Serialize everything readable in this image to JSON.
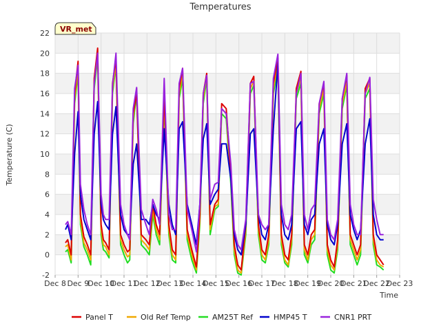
{
  "chart_data": {
    "type": "line",
    "title": "Temperatures",
    "xlabel": "Time",
    "ylabel": "Temperature (C)",
    "badge": "VR_met",
    "ylim": [
      -2,
      22
    ],
    "yticks": [
      -2,
      0,
      2,
      4,
      6,
      8,
      10,
      12,
      14,
      16,
      18,
      20,
      22
    ],
    "xlim": [
      8,
      23
    ],
    "xticks": [
      {
        "value": 8,
        "label": "Dec 8"
      },
      {
        "value": 9,
        "label": "Dec 9"
      },
      {
        "value": 10,
        "label": "Dec 10"
      },
      {
        "value": 11,
        "label": "Dec 11"
      },
      {
        "value": 12,
        "label": "Dec 12"
      },
      {
        "value": 13,
        "label": "Dec 13"
      },
      {
        "value": 14,
        "label": "Dec 14"
      },
      {
        "value": 15,
        "label": "Dec 15"
      },
      {
        "value": 16,
        "label": "Dec 16"
      },
      {
        "value": 17,
        "label": "Dec 17"
      },
      {
        "value": 18,
        "label": "Dec 18"
      },
      {
        "value": 19,
        "label": "Dec 19"
      },
      {
        "value": 20,
        "label": "Dec 20"
      },
      {
        "value": 21,
        "label": "Dec 21"
      },
      {
        "value": 22,
        "label": "Dec 22"
      },
      {
        "value": 23,
        "label": "Dec 23"
      }
    ],
    "grid": true,
    "legend_position": "bottom",
    "series": [
      {
        "name": "Panel T",
        "color": "#dd0000",
        "x": [
          8.45,
          8.55,
          8.7,
          8.85,
          9.0,
          9.1,
          9.25,
          9.4,
          9.55,
          9.7,
          9.85,
          10.0,
          10.1,
          10.2,
          10.35,
          10.5,
          10.65,
          10.85,
          11.0,
          11.15,
          11.25,
          11.4,
          11.55,
          11.75,
          11.95,
          12.1,
          12.25,
          12.4,
          12.55,
          12.75,
          12.95,
          13.1,
          13.25,
          13.4,
          13.55,
          13.75,
          13.95,
          14.15,
          14.3,
          14.45,
          14.6,
          14.75,
          14.95,
          15.1,
          15.25,
          15.45,
          15.65,
          15.8,
          15.95,
          16.1,
          16.3,
          16.5,
          16.65,
          16.85,
          17.0,
          17.15,
          17.3,
          17.5,
          17.7,
          17.85,
          18.0,
          18.15,
          18.3,
          18.5,
          18.7,
          18.85,
          19.0,
          19.15,
          19.3,
          19.5,
          19.7,
          19.85,
          20.0,
          20.15,
          20.3,
          20.5,
          20.7,
          20.85,
          21.0,
          21.15,
          21.3,
          21.5,
          21.7,
          21.85,
          22.0,
          22.15,
          22.3
        ],
        "y": [
          1.2,
          1.5,
          0.0,
          16.0,
          19.2,
          4.0,
          1.8,
          1.0,
          0.0,
          17.5,
          20.5,
          3.0,
          1.5,
          1.2,
          0.5,
          17.0,
          19.5,
          2.0,
          1.0,
          0.3,
          0.5,
          14.0,
          16.0,
          2.0,
          1.5,
          1.0,
          5.0,
          3.0,
          2.0,
          16.0,
          3.0,
          0.5,
          0.0,
          16.5,
          18.5,
          2.5,
          0.5,
          -1.2,
          4.0,
          16.0,
          18.0,
          3.0,
          5.0,
          5.5,
          15.0,
          14.5,
          8.0,
          1.0,
          -1.0,
          -1.5,
          3.0,
          17.0,
          17.7,
          3.0,
          0.5,
          0.0,
          2.0,
          17.0,
          19.5,
          2.0,
          0.0,
          -0.5,
          2.0,
          16.5,
          18.2,
          1.0,
          0.0,
          2.0,
          2.5,
          15.0,
          17.0,
          1.0,
          -0.5,
          -1.2,
          1.5,
          15.5,
          17.8,
          2.0,
          1.0,
          0.0,
          1.0,
          16.5,
          17.5,
          2.0,
          0.0,
          -0.5,
          -1.0
        ]
      },
      {
        "name": "Old Ref Temp",
        "color": "#f0a800",
        "x": [
          8.45,
          8.55,
          8.7,
          8.85,
          9.0,
          9.1,
          9.25,
          9.4,
          9.55,
          9.7,
          9.85,
          10.0,
          10.1,
          10.2,
          10.35,
          10.5,
          10.65,
          10.85,
          11.0,
          11.15,
          11.25,
          11.4,
          11.55,
          11.75,
          11.95,
          12.1,
          12.25,
          12.4,
          12.55,
          12.75,
          12.95,
          13.1,
          13.25,
          13.4,
          13.55,
          13.75,
          13.95,
          14.15,
          14.3,
          14.45,
          14.6,
          14.75,
          14.95,
          15.1,
          15.25,
          15.45,
          15.65,
          15.8,
          15.95,
          16.1,
          16.3,
          16.5,
          16.65,
          16.85,
          17.0,
          17.15,
          17.3,
          17.5,
          17.7,
          17.85,
          18.0,
          18.15,
          18.3,
          18.5,
          18.7,
          18.85,
          19.0,
          19.15,
          19.3,
          19.5,
          19.7,
          19.85,
          20.0,
          20.15,
          20.3,
          20.5,
          20.7,
          20.85,
          21.0,
          21.15,
          21.3,
          21.5,
          21.7,
          21.85,
          22.0,
          22.15,
          22.3
        ],
        "y": [
          0.8,
          1.0,
          -0.5,
          15.5,
          18.5,
          3.5,
          1.2,
          0.5,
          -0.5,
          17.0,
          19.8,
          2.5,
          1.0,
          0.8,
          0.0,
          16.5,
          19.0,
          1.5,
          0.5,
          -0.2,
          0.0,
          13.5,
          16.5,
          1.5,
          1.0,
          0.5,
          4.5,
          2.5,
          1.5,
          15.5,
          2.5,
          0.0,
          -0.5,
          16.0,
          18.0,
          2.0,
          0.0,
          -1.5,
          3.5,
          15.5,
          17.9,
          2.5,
          4.8,
          5.0,
          14.5,
          14.0,
          7.5,
          0.5,
          -1.5,
          -1.8,
          2.5,
          16.5,
          17.2,
          2.5,
          0.0,
          -0.5,
          1.5,
          16.5,
          19.0,
          1.5,
          -0.5,
          -1.0,
          1.5,
          16.0,
          17.5,
          0.5,
          -0.5,
          1.5,
          2.0,
          14.5,
          16.5,
          0.5,
          -1.0,
          -1.5,
          1.0,
          15.0,
          17.2,
          1.5,
          0.5,
          -0.5,
          0.5,
          16.0,
          17.0,
          1.5,
          -0.5,
          -1.0,
          -1.2
        ]
      },
      {
        "name": "AM25T Ref",
        "color": "#22dd22",
        "x": [
          8.45,
          8.55,
          8.7,
          8.85,
          9.0,
          9.1,
          9.25,
          9.4,
          9.55,
          9.7,
          9.85,
          10.0,
          10.1,
          10.2,
          10.35,
          10.5,
          10.65,
          10.85,
          11.0,
          11.15,
          11.25,
          11.4,
          11.55,
          11.75,
          11.95,
          12.1,
          12.25,
          12.4,
          12.55,
          12.75,
          12.95,
          13.1,
          13.25,
          13.4,
          13.55,
          13.75,
          13.95,
          14.15,
          14.3,
          14.45,
          14.6,
          14.75,
          14.95,
          15.1,
          15.25,
          15.45,
          15.65,
          15.8,
          15.95,
          16.1,
          16.3,
          16.5,
          16.65,
          16.85,
          17.0,
          17.15,
          17.3,
          17.5,
          17.7,
          17.85,
          18.0,
          18.15,
          18.3,
          18.5,
          18.7,
          18.85,
          19.0,
          19.15,
          19.3,
          19.5,
          19.7,
          19.85,
          20.0,
          20.15,
          20.3,
          20.5,
          20.7,
          20.85,
          21.0,
          21.15,
          21.3,
          21.5,
          21.7,
          21.85,
          22.0,
          22.15,
          22.3
        ],
        "y": [
          0.3,
          0.5,
          -0.8,
          15.0,
          18.0,
          3.0,
          0.8,
          0.0,
          -1.0,
          16.5,
          19.5,
          2.0,
          0.5,
          0.3,
          -0.3,
          16.0,
          18.8,
          1.0,
          0.0,
          -0.8,
          -0.5,
          13.0,
          16.0,
          1.0,
          0.5,
          0.0,
          4.0,
          2.0,
          1.0,
          15.0,
          2.0,
          -0.5,
          -0.8,
          15.5,
          17.5,
          1.5,
          -0.5,
          -1.8,
          3.0,
          15.0,
          17.5,
          2.0,
          4.5,
          4.8,
          14.0,
          13.5,
          7.0,
          0.0,
          -1.8,
          -2.0,
          2.0,
          16.0,
          16.8,
          2.0,
          -0.5,
          -0.8,
          1.0,
          16.0,
          18.5,
          1.0,
          -0.8,
          -1.2,
          1.0,
          15.5,
          17.0,
          0.0,
          -0.8,
          1.0,
          1.5,
          14.0,
          16.0,
          0.0,
          -1.5,
          -1.8,
          0.5,
          14.5,
          16.8,
          1.0,
          0.0,
          -1.0,
          0.0,
          15.5,
          16.5,
          1.0,
          -1.0,
          -1.2,
          -1.5
        ]
      },
      {
        "name": "HMP45 T",
        "color": "#0000cc",
        "x": [
          8.45,
          8.55,
          8.7,
          8.85,
          9.0,
          9.1,
          9.25,
          9.4,
          9.55,
          9.7,
          9.85,
          10.0,
          10.1,
          10.2,
          10.35,
          10.5,
          10.65,
          10.85,
          11.0,
          11.15,
          11.25,
          11.4,
          11.55,
          11.75,
          11.95,
          12.1,
          12.25,
          12.4,
          12.55,
          12.75,
          12.95,
          13.1,
          13.25,
          13.4,
          13.55,
          13.75,
          13.95,
          14.15,
          14.3,
          14.45,
          14.6,
          14.75,
          14.95,
          15.1,
          15.25,
          15.45,
          15.65,
          15.8,
          15.95,
          16.1,
          16.3,
          16.5,
          16.65,
          16.85,
          17.0,
          17.15,
          17.3,
          17.5,
          17.7,
          17.85,
          18.0,
          18.15,
          18.3,
          18.5,
          18.7,
          18.85,
          19.0,
          19.15,
          19.3,
          19.5,
          19.7,
          19.85,
          20.0,
          20.15,
          20.3,
          20.5,
          20.7,
          20.85,
          21.0,
          21.15,
          21.3,
          21.5,
          21.7,
          21.85,
          22.0,
          22.15,
          22.3
        ],
        "y": [
          2.5,
          3.0,
          1.5,
          10.0,
          14.2,
          6.0,
          3.5,
          2.5,
          1.5,
          12.0,
          15.2,
          5.0,
          3.5,
          3.0,
          2.5,
          12.0,
          14.7,
          4.0,
          2.5,
          2.0,
          2.0,
          9.0,
          11.0,
          3.5,
          3.5,
          3.0,
          5.0,
          4.0,
          3.5,
          12.5,
          5.0,
          3.0,
          2.0,
          12.5,
          13.2,
          5.0,
          3.0,
          1.0,
          5.0,
          11.5,
          13.0,
          5.0,
          6.0,
          6.5,
          11.0,
          11.0,
          7.5,
          2.0,
          0.5,
          0.0,
          3.0,
          12.0,
          12.5,
          4.0,
          2.0,
          1.5,
          3.0,
          12.5,
          19.0,
          4.0,
          2.0,
          1.5,
          3.0,
          12.5,
          13.2,
          3.0,
          2.0,
          3.5,
          4.0,
          11.0,
          12.5,
          3.0,
          1.5,
          1.0,
          3.0,
          11.0,
          13.0,
          4.0,
          2.5,
          1.5,
          2.5,
          11.0,
          13.5,
          4.0,
          2.0,
          1.5,
          1.5
        ]
      },
      {
        "name": "CNR1 PRT",
        "color": "#9922dd",
        "x": [
          8.45,
          8.55,
          8.7,
          8.85,
          9.0,
          9.1,
          9.25,
          9.4,
          9.55,
          9.7,
          9.85,
          10.0,
          10.1,
          10.2,
          10.35,
          10.5,
          10.65,
          10.85,
          11.0,
          11.15,
          11.25,
          11.4,
          11.55,
          11.75,
          11.95,
          12.1,
          12.25,
          12.4,
          12.55,
          12.75,
          12.95,
          13.1,
          13.25,
          13.4,
          13.55,
          13.75,
          13.95,
          14.15,
          14.3,
          14.45,
          14.6,
          14.75,
          14.95,
          15.1,
          15.25,
          15.45,
          15.65,
          15.8,
          15.95,
          16.1,
          16.3,
          16.5,
          16.65,
          16.85,
          17.0,
          17.15,
          17.3,
          17.5,
          17.7,
          17.85,
          18.0,
          18.15,
          18.3,
          18.5,
          18.7,
          18.85,
          19.0,
          19.15,
          19.3,
          19.5,
          19.7,
          19.85,
          20.0,
          20.15,
          20.3,
          20.5,
          20.7,
          20.85,
          21.0,
          21.15,
          21.3,
          21.5,
          21.7,
          21.85,
          22.0,
          22.15,
          22.3
        ],
        "y": [
          3.0,
          3.3,
          2.0,
          16.5,
          18.8,
          7.0,
          4.5,
          3.0,
          2.0,
          17.0,
          20.0,
          6.0,
          4.0,
          3.5,
          3.5,
          16.8,
          20.0,
          5.0,
          3.0,
          2.0,
          1.5,
          14.5,
          16.6,
          4.5,
          3.0,
          2.0,
          5.5,
          4.5,
          3.0,
          17.5,
          4.0,
          2.5,
          2.5,
          17.0,
          18.5,
          4.5,
          2.5,
          0.3,
          5.0,
          16.0,
          17.8,
          5.5,
          7.0,
          7.2,
          14.5,
          14.0,
          9.0,
          2.5,
          1.0,
          0.5,
          3.5,
          17.0,
          17.2,
          4.0,
          3.0,
          2.5,
          3.0,
          17.5,
          19.9,
          5.0,
          3.0,
          2.5,
          4.0,
          16.0,
          18.0,
          4.0,
          2.5,
          4.5,
          5.0,
          15.0,
          17.2,
          3.5,
          2.0,
          1.5,
          3.5,
          15.5,
          18.0,
          5.0,
          3.0,
          2.0,
          2.0,
          16.0,
          17.6,
          5.5,
          3.5,
          2.0,
          2.0
        ]
      }
    ]
  }
}
